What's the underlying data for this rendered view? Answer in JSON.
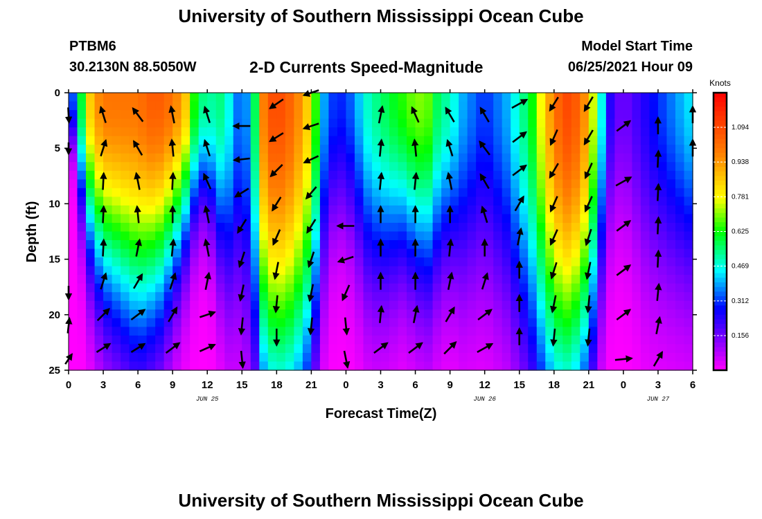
{
  "header": {
    "title": "University of Southern Mississippi Ocean Cube",
    "station": "PTBM6",
    "coords": "30.2130N  88.5050W",
    "subtitle": "2-D Currents Speed-Magnitude",
    "model_start_label": "Model Start Time",
    "model_start_value": "06/25/2021 Hour 09"
  },
  "footer": {
    "title": "University of Southern Mississippi Ocean Cube"
  },
  "chart_data": {
    "type": "heatmap",
    "xlabel": "Forecast Time(Z)",
    "ylabel": "Depth (ft)",
    "x_ticks": [
      "0",
      "3",
      "6",
      "9",
      "12",
      "15",
      "18",
      "21",
      "0",
      "3",
      "6",
      "9",
      "12",
      "15",
      "18",
      "21",
      "0",
      "3",
      "6"
    ],
    "x_range_hours": [
      0,
      54
    ],
    "y_ticks": [
      0,
      5,
      10,
      15,
      20,
      25
    ],
    "ylim": [
      0,
      25
    ],
    "date_labels": [
      {
        "text": "JUN 25",
        "hour": 12
      },
      {
        "text": "JUN 26",
        "hour": 36
      },
      {
        "text": "JUN 27",
        "hour": 51
      }
    ],
    "colorbar": {
      "unit": "Knots",
      "ticks": [
        "1.094",
        "0.938",
        "0.781",
        "0.625",
        "0.469",
        "0.312",
        "0.156"
      ],
      "min": 0.0,
      "max": 1.25
    },
    "speed_profile": {
      "hours": [
        0,
        1,
        2,
        3,
        4,
        5,
        6,
        7,
        8,
        9,
        10,
        11,
        12,
        13,
        14,
        15,
        16,
        17,
        18,
        19,
        20,
        21,
        22,
        23,
        24,
        25,
        26,
        27,
        28,
        29,
        30,
        31,
        32,
        33,
        34,
        35,
        36,
        37,
        38,
        39,
        40,
        41,
        42,
        43,
        44,
        45,
        46,
        47,
        48,
        49,
        50,
        51,
        52,
        53,
        54
      ],
      "surface_kn": [
        0.2,
        0.55,
        0.9,
        1.0,
        1.0,
        1.0,
        1.0,
        1.05,
        1.05,
        1.0,
        0.9,
        0.6,
        0.5,
        0.55,
        0.45,
        0.3,
        0.5,
        1.05,
        1.1,
        1.05,
        0.95,
        0.8,
        0.4,
        0.3,
        0.3,
        0.4,
        0.5,
        0.55,
        0.6,
        0.65,
        0.7,
        0.7,
        0.55,
        0.5,
        0.4,
        0.35,
        0.3,
        0.35,
        0.4,
        0.5,
        0.6,
        0.8,
        1.0,
        1.1,
        1.05,
        0.9,
        0.5,
        0.2,
        0.15,
        0.2,
        0.25,
        0.3,
        0.35,
        0.4,
        0.45
      ],
      "half_depth_ft": [
        2,
        8,
        12,
        14,
        15,
        16,
        17,
        16,
        15,
        13,
        11,
        9,
        8,
        12,
        15,
        16,
        19,
        22,
        23,
        23,
        22,
        20,
        14,
        10,
        10,
        12,
        14,
        14,
        13,
        12,
        13,
        14,
        13,
        12,
        14,
        14,
        14,
        15,
        16,
        18,
        20,
        22,
        23,
        23,
        22,
        20,
        15,
        10,
        10,
        12,
        14,
        14,
        14,
        14,
        14
      ]
    },
    "vectors": [
      {
        "hour": 0,
        "depth": 2,
        "u": 0.05,
        "v": -0.9
      },
      {
        "hour": 0,
        "depth": 5,
        "u": 0.0,
        "v": -0.7
      },
      {
        "hour": 0,
        "depth": 18,
        "u": 0.0,
        "v": -0.8
      },
      {
        "hour": 0,
        "depth": 21,
        "u": 0.1,
        "v": 0.9
      },
      {
        "hour": 0,
        "depth": 24,
        "u": 0.4,
        "v": 0.6
      },
      {
        "hour": 3,
        "depth": 2,
        "u": -0.3,
        "v": 0.95
      },
      {
        "hour": 3,
        "depth": 5,
        "u": 0.3,
        "v": 0.95
      },
      {
        "hour": 3,
        "depth": 8,
        "u": 0.05,
        "v": 1.0
      },
      {
        "hour": 3,
        "depth": 11,
        "u": 0.05,
        "v": 1.0
      },
      {
        "hour": 3,
        "depth": 14,
        "u": 0.05,
        "v": 1.0
      },
      {
        "hour": 3,
        "depth": 17,
        "u": 0.3,
        "v": 0.95
      },
      {
        "hour": 3,
        "depth": 20,
        "u": 0.7,
        "v": 0.7
      },
      {
        "hour": 3,
        "depth": 23,
        "u": 0.8,
        "v": 0.5
      },
      {
        "hour": 6,
        "depth": 2,
        "u": -0.6,
        "v": 0.8
      },
      {
        "hour": 6,
        "depth": 5,
        "u": -0.5,
        "v": 0.85
      },
      {
        "hour": 6,
        "depth": 8,
        "u": -0.2,
        "v": 1.0
      },
      {
        "hour": 6,
        "depth": 11,
        "u": -0.1,
        "v": 1.0
      },
      {
        "hour": 6,
        "depth": 14,
        "u": 0.2,
        "v": 1.0
      },
      {
        "hour": 6,
        "depth": 17,
        "u": 0.5,
        "v": 0.85
      },
      {
        "hour": 6,
        "depth": 20,
        "u": 0.8,
        "v": 0.6
      },
      {
        "hour": 6,
        "depth": 23,
        "u": 0.8,
        "v": 0.5
      },
      {
        "hour": 9,
        "depth": 2,
        "u": -0.2,
        "v": 1.0
      },
      {
        "hour": 9,
        "depth": 5,
        "u": -0.1,
        "v": 1.0
      },
      {
        "hour": 9,
        "depth": 8,
        "u": 0.05,
        "v": 1.0
      },
      {
        "hour": 9,
        "depth": 11,
        "u": 0.0,
        "v": 1.0
      },
      {
        "hour": 9,
        "depth": 14,
        "u": 0.1,
        "v": 1.0
      },
      {
        "hour": 9,
        "depth": 17,
        "u": 0.3,
        "v": 0.95
      },
      {
        "hour": 9,
        "depth": 20,
        "u": 0.5,
        "v": 0.85
      },
      {
        "hour": 9,
        "depth": 23,
        "u": 0.8,
        "v": 0.6
      },
      {
        "hour": 12,
        "depth": 2,
        "u": -0.3,
        "v": 0.95
      },
      {
        "hour": 12,
        "depth": 5,
        "u": -0.3,
        "v": 0.95
      },
      {
        "hour": 12,
        "depth": 8,
        "u": -0.4,
        "v": 0.9
      },
      {
        "hour": 12,
        "depth": 11,
        "u": -0.2,
        "v": 1.0
      },
      {
        "hour": 12,
        "depth": 14,
        "u": -0.2,
        "v": 1.0
      },
      {
        "hour": 12,
        "depth": 17,
        "u": 0.2,
        "v": 1.0
      },
      {
        "hour": 12,
        "depth": 20,
        "u": 0.9,
        "v": 0.3
      },
      {
        "hour": 12,
        "depth": 23,
        "u": 0.9,
        "v": 0.4
      },
      {
        "hour": 15,
        "depth": 3,
        "u": -1.0,
        "v": 0.0
      },
      {
        "hour": 15,
        "depth": 6,
        "u": -0.95,
        "v": -0.1
      },
      {
        "hour": 15,
        "depth": 9,
        "u": -0.8,
        "v": -0.5
      },
      {
        "hour": 15,
        "depth": 12,
        "u": -0.5,
        "v": -0.8
      },
      {
        "hour": 15,
        "depth": 15,
        "u": -0.3,
        "v": -0.9
      },
      {
        "hour": 15,
        "depth": 18,
        "u": -0.2,
        "v": -0.95
      },
      {
        "hour": 15,
        "depth": 21,
        "u": -0.1,
        "v": -1.0
      },
      {
        "hour": 15,
        "depth": 24,
        "u": 0.1,
        "v": -1.0
      },
      {
        "hour": 18,
        "depth": 1,
        "u": -0.8,
        "v": -0.55
      },
      {
        "hour": 18,
        "depth": 4,
        "u": -0.8,
        "v": -0.5
      },
      {
        "hour": 18,
        "depth": 7,
        "u": -0.7,
        "v": -0.7
      },
      {
        "hour": 18,
        "depth": 10,
        "u": -0.5,
        "v": -0.8
      },
      {
        "hour": 18,
        "depth": 13,
        "u": -0.4,
        "v": -0.9
      },
      {
        "hour": 18,
        "depth": 16,
        "u": -0.2,
        "v": -1.0
      },
      {
        "hour": 18,
        "depth": 19,
        "u": -0.1,
        "v": -1.0
      },
      {
        "hour": 18,
        "depth": 22,
        "u": 0.0,
        "v": -1.0
      },
      {
        "hour": 21,
        "depth": 0,
        "u": -0.9,
        "v": -0.3
      },
      {
        "hour": 21,
        "depth": 3,
        "u": -0.9,
        "v": -0.3
      },
      {
        "hour": 21,
        "depth": 6,
        "u": -0.85,
        "v": -0.4
      },
      {
        "hour": 21,
        "depth": 9,
        "u": -0.6,
        "v": -0.7
      },
      {
        "hour": 21,
        "depth": 12,
        "u": -0.5,
        "v": -0.8
      },
      {
        "hour": 21,
        "depth": 15,
        "u": -0.3,
        "v": -0.9
      },
      {
        "hour": 21,
        "depth": 18,
        "u": -0.2,
        "v": -1.0
      },
      {
        "hour": 21,
        "depth": 21,
        "u": -0.1,
        "v": -1.0
      },
      {
        "hour": 24,
        "depth": 12,
        "u": -1.0,
        "v": 0.0
      },
      {
        "hour": 24,
        "depth": 15,
        "u": -0.9,
        "v": -0.3
      },
      {
        "hour": 24,
        "depth": 18,
        "u": -0.4,
        "v": -0.9
      },
      {
        "hour": 24,
        "depth": 21,
        "u": 0.1,
        "v": -1.0
      },
      {
        "hour": 24,
        "depth": 24,
        "u": 0.2,
        "v": -1.0
      },
      {
        "hour": 27,
        "depth": 2,
        "u": 0.2,
        "v": 1.0
      },
      {
        "hour": 27,
        "depth": 5,
        "u": 0.1,
        "v": 1.0
      },
      {
        "hour": 27,
        "depth": 8,
        "u": 0.1,
        "v": 1.0
      },
      {
        "hour": 27,
        "depth": 11,
        "u": 0.0,
        "v": 1.0
      },
      {
        "hour": 27,
        "depth": 14,
        "u": 0.0,
        "v": 1.0
      },
      {
        "hour": 27,
        "depth": 17,
        "u": 0.0,
        "v": 1.0
      },
      {
        "hour": 27,
        "depth": 20,
        "u": 0.1,
        "v": 1.0
      },
      {
        "hour": 27,
        "depth": 23,
        "u": 0.8,
        "v": 0.6
      },
      {
        "hour": 30,
        "depth": 2,
        "u": -0.4,
        "v": 0.9
      },
      {
        "hour": 30,
        "depth": 5,
        "u": -0.1,
        "v": 1.0
      },
      {
        "hour": 30,
        "depth": 8,
        "u": 0.1,
        "v": 1.0
      },
      {
        "hour": 30,
        "depth": 11,
        "u": 0.0,
        "v": 1.0
      },
      {
        "hour": 30,
        "depth": 14,
        "u": 0.0,
        "v": 1.0
      },
      {
        "hour": 30,
        "depth": 17,
        "u": 0.0,
        "v": 1.0
      },
      {
        "hour": 30,
        "depth": 20,
        "u": 0.2,
        "v": 1.0
      },
      {
        "hour": 30,
        "depth": 23,
        "u": 0.8,
        "v": 0.6
      },
      {
        "hour": 33,
        "depth": 2,
        "u": -0.5,
        "v": 0.85
      },
      {
        "hour": 33,
        "depth": 5,
        "u": -0.3,
        "v": 0.95
      },
      {
        "hour": 33,
        "depth": 8,
        "u": -0.2,
        "v": 1.0
      },
      {
        "hour": 33,
        "depth": 11,
        "u": 0.0,
        "v": 1.0
      },
      {
        "hour": 33,
        "depth": 14,
        "u": 0.1,
        "v": 1.0
      },
      {
        "hour": 33,
        "depth": 17,
        "u": 0.2,
        "v": 1.0
      },
      {
        "hour": 33,
        "depth": 20,
        "u": 0.5,
        "v": 0.85
      },
      {
        "hour": 33,
        "depth": 23,
        "u": 0.7,
        "v": 0.7
      },
      {
        "hour": 36,
        "depth": 2,
        "u": -0.5,
        "v": 0.85
      },
      {
        "hour": 36,
        "depth": 5,
        "u": -0.6,
        "v": 0.8
      },
      {
        "hour": 36,
        "depth": 8,
        "u": -0.5,
        "v": 0.85
      },
      {
        "hour": 36,
        "depth": 11,
        "u": -0.3,
        "v": 0.95
      },
      {
        "hour": 36,
        "depth": 14,
        "u": 0.0,
        "v": 1.0
      },
      {
        "hour": 36,
        "depth": 17,
        "u": 0.3,
        "v": 0.95
      },
      {
        "hour": 36,
        "depth": 20,
        "u": 0.8,
        "v": 0.6
      },
      {
        "hour": 36,
        "depth": 23,
        "u": 0.9,
        "v": 0.5
      },
      {
        "hour": 39,
        "depth": 1,
        "u": 0.9,
        "v": 0.5
      },
      {
        "hour": 39,
        "depth": 4,
        "u": 0.8,
        "v": 0.6
      },
      {
        "hour": 39,
        "depth": 7,
        "u": 0.8,
        "v": 0.6
      },
      {
        "hour": 39,
        "depth": 10,
        "u": 0.5,
        "v": 0.85
      },
      {
        "hour": 39,
        "depth": 13,
        "u": 0.2,
        "v": 1.0
      },
      {
        "hour": 39,
        "depth": 16,
        "u": 0.0,
        "v": 1.0
      },
      {
        "hour": 39,
        "depth": 19,
        "u": 0.0,
        "v": 1.0
      },
      {
        "hour": 39,
        "depth": 22,
        "u": 0.0,
        "v": 1.0
      },
      {
        "hour": 42,
        "depth": 1,
        "u": -0.5,
        "v": -0.8
      },
      {
        "hour": 42,
        "depth": 4,
        "u": -0.4,
        "v": -0.9
      },
      {
        "hour": 42,
        "depth": 7,
        "u": -0.5,
        "v": -0.85
      },
      {
        "hour": 42,
        "depth": 10,
        "u": -0.4,
        "v": -0.9
      },
      {
        "hour": 42,
        "depth": 13,
        "u": -0.4,
        "v": -0.9
      },
      {
        "hour": 42,
        "depth": 16,
        "u": -0.3,
        "v": -0.95
      },
      {
        "hour": 42,
        "depth": 19,
        "u": -0.2,
        "v": -1.0
      },
      {
        "hour": 42,
        "depth": 22,
        "u": -0.1,
        "v": -1.0
      },
      {
        "hour": 45,
        "depth": 1,
        "u": -0.5,
        "v": -0.85
      },
      {
        "hour": 45,
        "depth": 4,
        "u": -0.5,
        "v": -0.85
      },
      {
        "hour": 45,
        "depth": 7,
        "u": -0.4,
        "v": -0.9
      },
      {
        "hour": 45,
        "depth": 10,
        "u": -0.4,
        "v": -0.9
      },
      {
        "hour": 45,
        "depth": 13,
        "u": -0.3,
        "v": -0.95
      },
      {
        "hour": 45,
        "depth": 16,
        "u": -0.2,
        "v": -1.0
      },
      {
        "hour": 45,
        "depth": 19,
        "u": -0.1,
        "v": -1.0
      },
      {
        "hour": 45,
        "depth": 22,
        "u": -0.1,
        "v": -1.0
      },
      {
        "hour": 48,
        "depth": 3,
        "u": 0.8,
        "v": 0.6
      },
      {
        "hour": 48,
        "depth": 8,
        "u": 0.9,
        "v": 0.5
      },
      {
        "hour": 48,
        "depth": 12,
        "u": 0.8,
        "v": 0.6
      },
      {
        "hour": 48,
        "depth": 16,
        "u": 0.8,
        "v": 0.6
      },
      {
        "hour": 48,
        "depth": 20,
        "u": 0.8,
        "v": 0.6
      },
      {
        "hour": 48,
        "depth": 24,
        "u": 1.0,
        "v": 0.1
      },
      {
        "hour": 51,
        "depth": 3,
        "u": 0.0,
        "v": 1.0
      },
      {
        "hour": 51,
        "depth": 6,
        "u": 0.05,
        "v": 1.0
      },
      {
        "hour": 51,
        "depth": 9,
        "u": 0.05,
        "v": 1.0
      },
      {
        "hour": 51,
        "depth": 12,
        "u": 0.05,
        "v": 1.0
      },
      {
        "hour": 51,
        "depth": 15,
        "u": 0.05,
        "v": 1.0
      },
      {
        "hour": 51,
        "depth": 18,
        "u": 0.1,
        "v": 1.0
      },
      {
        "hour": 51,
        "depth": 21,
        "u": 0.2,
        "v": 1.0
      },
      {
        "hour": 51,
        "depth": 24,
        "u": 0.5,
        "v": 0.85
      },
      {
        "hour": 54,
        "depth": 2,
        "u": 0.0,
        "v": 1.0
      },
      {
        "hour": 54,
        "depth": 5,
        "u": 0.0,
        "v": 1.0
      }
    ]
  }
}
